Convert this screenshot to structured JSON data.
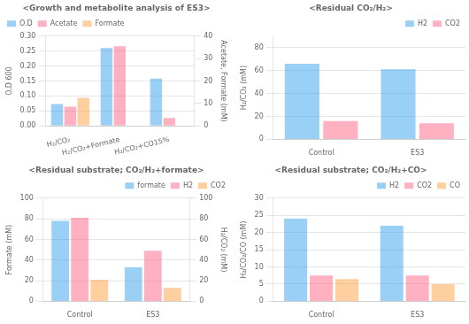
{
  "chart_data": [
    {
      "type": "bar",
      "title": "<Growth and metabolite analysis of ES3>",
      "categories": [
        "H₂/CO₂",
        "H₂/CO₂+Formate",
        "H₂/CO₂+CO15%"
      ],
      "series": [
        {
          "name": "O.D",
          "values": [
            0.073,
            0.26,
            0.158
          ]
        },
        {
          "name": "Acetate",
          "values": [
            8.5,
            35.5,
            3.5
          ],
          "axis": "y2"
        },
        {
          "name": "Formate",
          "values": [
            12.5,
            0.0,
            0.0
          ],
          "axis": "y2"
        }
      ],
      "ylabel": "O.D 600",
      "y2label": "Acetate, Formate (mM)",
      "ylim": [
        0,
        0.3
      ],
      "yticks": [
        {
          "value": 0,
          "label": "0.00"
        },
        0.05,
        {
          "value": 0.1,
          "label": "0.10"
        },
        0.15,
        {
          "value": 0.2,
          "label": "0.20"
        },
        0.25,
        {
          "value": 0.3,
          "label": "0.30"
        }
      ],
      "y2lim": [
        0,
        40
      ],
      "y2ticks": [
        0,
        10,
        20,
        30,
        40
      ],
      "grid": true,
      "legend": "upper left"
    },
    {
      "type": "bar",
      "title": "<Residual CO₂/H₂>",
      "categories": [
        "Control",
        "ES3"
      ],
      "series": [
        {
          "name": "H2",
          "values": [
            66,
            61
          ]
        },
        {
          "name": "CO2",
          "values": [
            16,
            14
          ]
        }
      ],
      "ylabel": "H₂/CO₂ (mM)",
      "ylim": [
        0,
        90
      ],
      "yticks": [
        0,
        20,
        40,
        60,
        80
      ],
      "grid": true,
      "legend": "upper right"
    },
    {
      "type": "bar",
      "title": "<Residual substrate; CO₂/H₂+formate>",
      "categories": [
        "Control",
        "ES3"
      ],
      "series": [
        {
          "name": "formate",
          "values": [
            78,
            33
          ]
        },
        {
          "name": "H2",
          "values": [
            81,
            49
          ],
          "axis": "y2"
        },
        {
          "name": "CO2",
          "values": [
            21,
            13
          ],
          "axis": "y2"
        }
      ],
      "ylabel": "Formate (mM)",
      "y2label": "H₂/CO₂ (mM)",
      "ylim": [
        0,
        100
      ],
      "yticks": [
        0,
        20,
        40,
        60,
        80,
        100
      ],
      "y2lim": [
        0,
        100
      ],
      "y2ticks": [
        0,
        20,
        40,
        60,
        80,
        100
      ],
      "grid": true,
      "legend": "upper right"
    },
    {
      "type": "bar",
      "title": "<Residual substrate; CO₂/H₂+CO>",
      "categories": [
        "Control",
        "ES3"
      ],
      "series": [
        {
          "name": "H2",
          "values": [
            24,
            22
          ]
        },
        {
          "name": "CO2",
          "values": [
            7.5,
            7.5
          ]
        },
        {
          "name": "CO",
          "values": [
            6.5,
            5.0
          ]
        }
      ],
      "ylabel": "H₂/CO₂/CO (mM)",
      "ylim": [
        0,
        30
      ],
      "yticks": [
        0,
        5,
        10,
        15,
        20,
        25,
        30
      ],
      "grid": true,
      "legend": "upper right"
    }
  ]
}
